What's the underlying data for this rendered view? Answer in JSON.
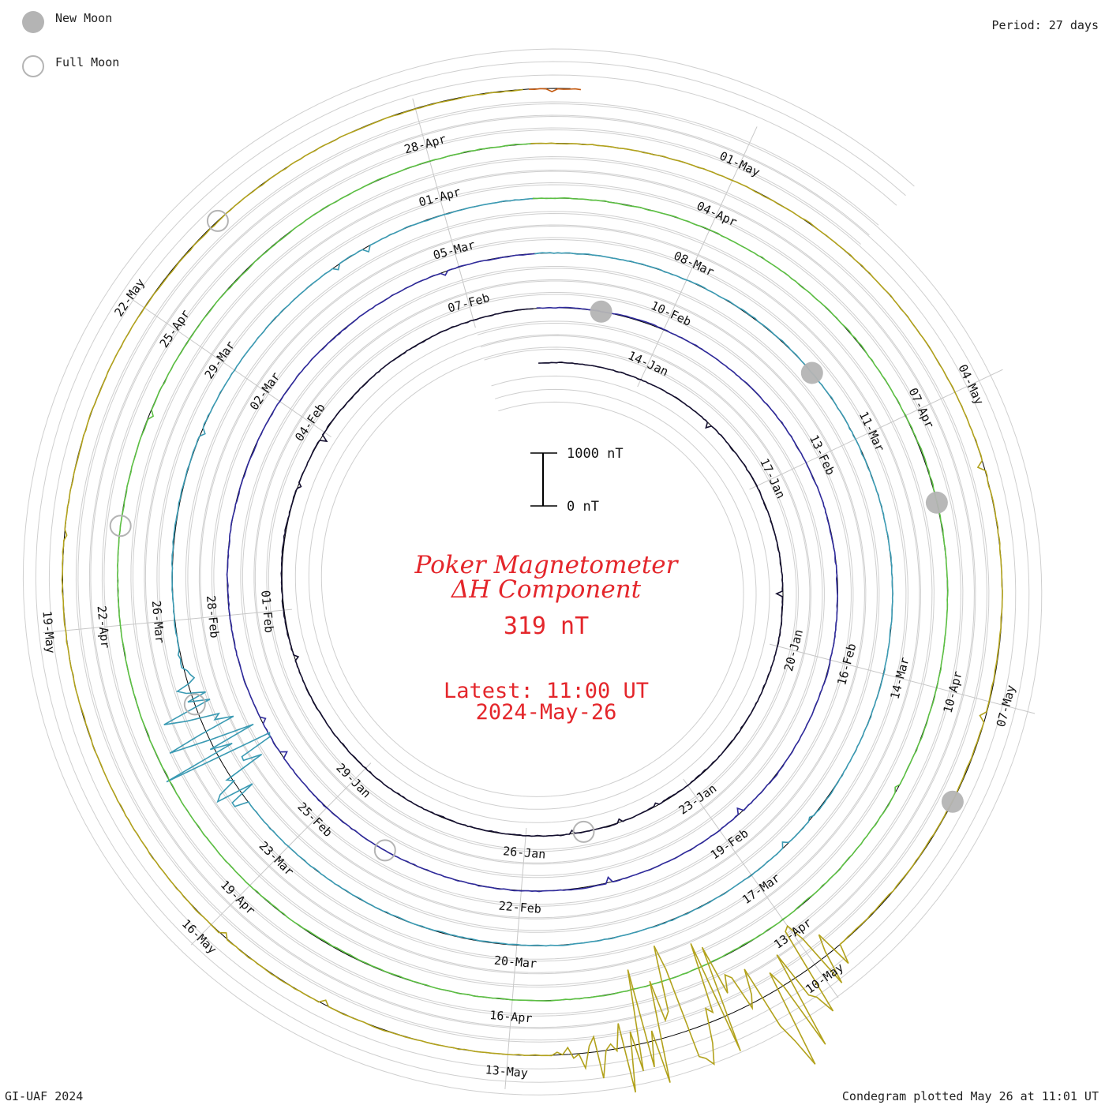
{
  "legend": {
    "new_moon_label": "New Moon",
    "full_moon_label": "Full Moon",
    "new_moon_color": "#b4b4b4",
    "full_moon_color": "#b4b4b4"
  },
  "header": {
    "period_label": "Period: 27 days"
  },
  "title": {
    "line1": "Poker Magnetometer",
    "line2": "ΔH Component",
    "value": "319 nT",
    "latest_label": "Latest: 11:00 UT",
    "latest_date": "2024-May-26"
  },
  "scale_bar": {
    "top_label": "1000 nT",
    "bottom_label": "0 nT"
  },
  "footer": {
    "left": "GI-UAF 2024",
    "right": "Condegram plotted May 26 at 11:01 UT"
  },
  "chart_data": {
    "type": "line",
    "title": "Poker Magnetometer ΔH Component",
    "period_days": 27,
    "start_date": "2024-01-12",
    "latest": "2024-05-26 11:00 UT",
    "latest_value_nT": 319,
    "scale_nT": [
      0,
      1000
    ],
    "rotations": [
      {
        "color": "#151030",
        "tick_labels": [
          "14-Jan",
          "17-Jan",
          "20-Jan",
          "23-Jan",
          "26-Jan",
          "29-Jan",
          "01-Feb",
          "04-Feb",
          "07-Feb"
        ]
      },
      {
        "color": "#2f2a9c",
        "tick_labels": [
          "10-Feb",
          "13-Feb",
          "16-Feb",
          "19-Feb",
          "22-Feb",
          "25-Feb",
          "28-Feb",
          "02-Mar",
          "05-Mar"
        ]
      },
      {
        "color": "#3a9ab3",
        "tick_labels": [
          "08-Mar",
          "11-Mar",
          "14-Mar",
          "17-Mar",
          "20-Mar",
          "23-Mar",
          "26-Mar",
          "29-Mar",
          "01-Apr"
        ]
      },
      {
        "color": "#5cc043",
        "tick_labels": [
          "04-Apr",
          "07-Apr",
          "10-Apr",
          "13-Apr",
          "16-Apr",
          "19-Apr",
          "22-Apr",
          "25-Apr",
          "28-Apr"
        ]
      },
      {
        "color": "#b2a21c",
        "tick_labels": [
          "01-May",
          "04-May",
          "07-May",
          "10-May",
          "13-May",
          "16-May",
          "19-May",
          "22-May"
        ]
      },
      {
        "color": "#c45a10",
        "tick_labels": []
      },
      {
        "color": "#c2190f",
        "tick_labels": []
      }
    ],
    "new_moons": [
      "2024-02-09",
      "2024-03-10",
      "2024-04-08",
      "2024-05-08"
    ],
    "full_moons": [
      "2024-01-25",
      "2024-02-24",
      "2024-03-25",
      "2024-04-23",
      "2024-05-23"
    ],
    "disturbed_intervals_nT": [
      {
        "date": "2024-03-24",
        "peak_nT": 1300
      },
      {
        "date": "2024-05-10",
        "peak_nT": 1900
      },
      {
        "date": "2024-05-11",
        "peak_nT": 1700
      }
    ]
  }
}
